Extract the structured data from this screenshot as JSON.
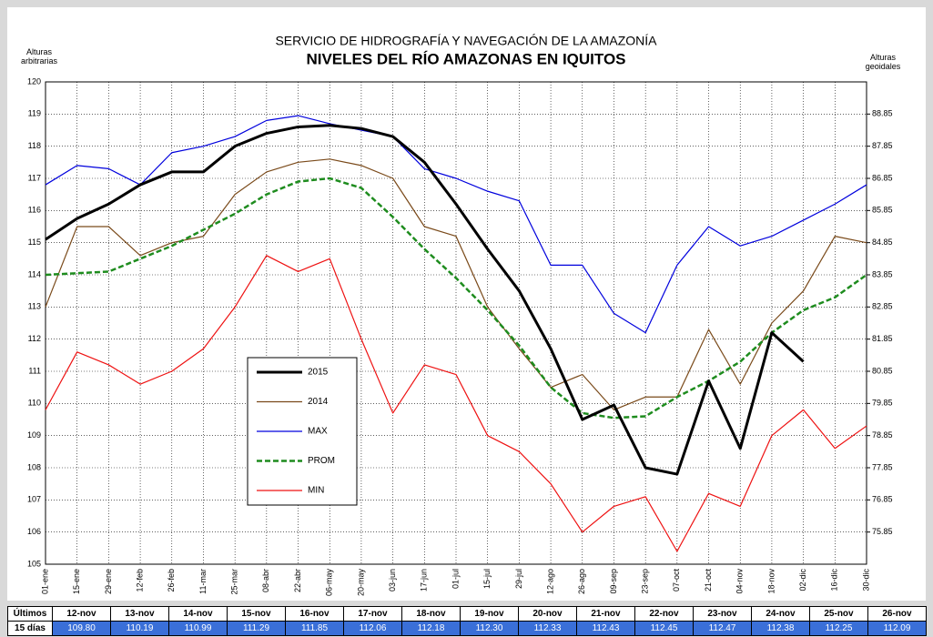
{
  "chart_data": {
    "type": "line",
    "title": "SERVICIO DE HIDROGRAFÍA Y NAVEGACIÓN DE LA AMAZONÍA",
    "subtitle": "NIVELES DEL RÍO AMAZONAS EN IQUITOS",
    "y_label": "Alturas arbitrarias",
    "y2_label": "Alturas geoidales",
    "categories": [
      "01-ene",
      "15-ene",
      "29-ene",
      "12-feb",
      "26-feb",
      "11-mar",
      "25-mar",
      "08-abr",
      "22-abr",
      "06-may",
      "20-may",
      "03-jun",
      "17-jun",
      "01-jul",
      "15-jul",
      "29-jul",
      "12-ago",
      "26-ago",
      "09-sep",
      "23-sep",
      "07-oct",
      "21-oct",
      "04-nov",
      "18-nov",
      "02-dic",
      "16-dic",
      "30-dic"
    ],
    "ylim": [
      105,
      120
    ],
    "yticks": [
      105,
      106,
      107,
      108,
      109,
      110,
      111,
      112,
      113,
      114,
      115,
      116,
      117,
      118,
      119,
      120
    ],
    "y2lim": [
      74.85,
      89.85
    ],
    "y2ticks": [
      75.85,
      76.85,
      77.85,
      78.85,
      79.85,
      80.85,
      81.85,
      82.85,
      83.85,
      84.85,
      85.85,
      86.85,
      87.85,
      88.85
    ],
    "grid": true,
    "series": [
      {
        "name": "2015",
        "color": "#000000",
        "width": 3,
        "dash": false,
        "values": [
          115.1,
          115.75,
          116.2,
          116.8,
          117.2,
          117.2,
          118.0,
          118.4,
          118.6,
          118.65,
          118.55,
          118.3,
          117.5,
          116.2,
          114.8,
          113.5,
          111.7,
          109.5,
          109.95,
          108.0,
          107.8,
          110.7,
          108.6,
          112.2,
          111.3,
          null,
          null
        ]
      },
      {
        "name": "2014",
        "color": "#7a4a1a",
        "width": 1.2,
        "dash": false,
        "values": [
          113.0,
          115.5,
          115.5,
          114.6,
          115.0,
          115.2,
          116.5,
          117.2,
          117.5,
          117.6,
          117.4,
          117.0,
          115.5,
          115.2,
          113.0,
          111.7,
          110.5,
          110.9,
          109.8,
          110.2,
          110.2,
          112.3,
          110.6,
          112.5,
          113.5,
          115.2,
          115.0
        ]
      },
      {
        "name": "MAX",
        "color": "#0000dd",
        "width": 1.2,
        "dash": false,
        "values": [
          116.8,
          117.4,
          117.3,
          116.8,
          117.8,
          118.0,
          118.3,
          118.8,
          118.95,
          118.7,
          118.5,
          118.3,
          117.3,
          117.0,
          116.6,
          116.3,
          114.3,
          114.3,
          112.8,
          112.2,
          114.3,
          115.5,
          114.9,
          115.2,
          115.7,
          116.2,
          116.8
        ]
      },
      {
        "name": "PROM",
        "color": "#1e8c1e",
        "width": 2.5,
        "dash": true,
        "values": [
          114.0,
          114.05,
          114.1,
          114.5,
          114.9,
          115.4,
          115.9,
          116.5,
          116.9,
          117.0,
          116.7,
          115.8,
          114.8,
          113.9,
          112.9,
          111.8,
          110.5,
          109.7,
          109.55,
          109.6,
          110.2,
          110.7,
          111.3,
          112.2,
          112.9,
          113.3,
          114.0
        ]
      },
      {
        "name": "MIN",
        "color": "#ee1111",
        "width": 1.2,
        "dash": false,
        "values": [
          109.8,
          111.6,
          111.2,
          110.6,
          111.0,
          111.7,
          113.0,
          114.6,
          114.1,
          114.5,
          112.0,
          109.7,
          111.2,
          110.9,
          109.0,
          108.5,
          107.5,
          106.0,
          106.8,
          107.1,
          105.4,
          107.2,
          106.8,
          109.0,
          109.8,
          108.6,
          109.3
        ]
      }
    ]
  },
  "table": {
    "row_labels": [
      "Últimos",
      "15 días"
    ],
    "dates": [
      "12-nov",
      "13-nov",
      "14-nov",
      "15-nov",
      "16-nov",
      "17-nov",
      "18-nov",
      "19-nov",
      "20-nov",
      "21-nov",
      "22-nov",
      "23-nov",
      "24-nov",
      "25-nov",
      "26-nov"
    ],
    "values": [
      "109.80",
      "110.19",
      "110.99",
      "111.29",
      "111.85",
      "112.06",
      "112.18",
      "112.30",
      "112.33",
      "112.43",
      "112.45",
      "112.47",
      "112.38",
      "112.25",
      "112.09"
    ]
  }
}
